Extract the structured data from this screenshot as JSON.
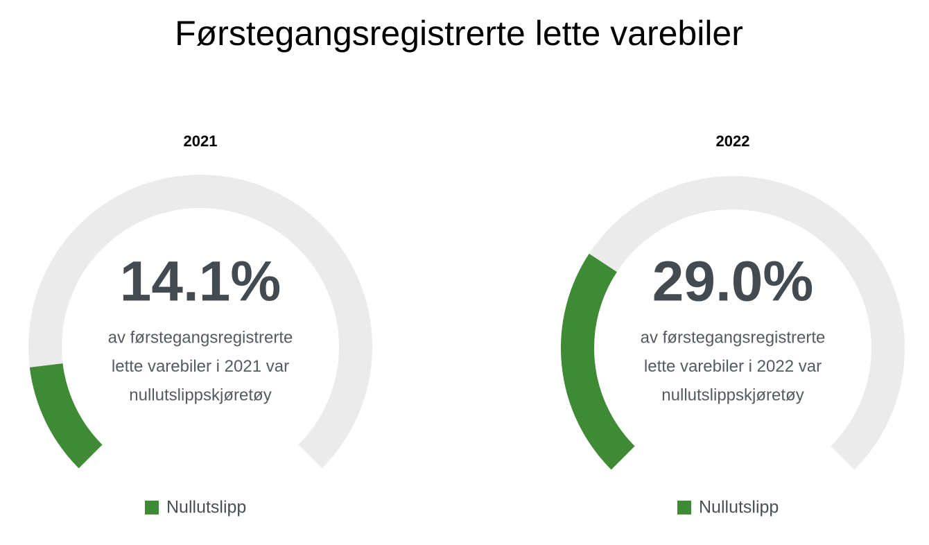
{
  "title": "Førstegangsregistrerte lette varebiler",
  "chart_data": [
    {
      "type": "gauge",
      "title": "2021",
      "ylim": [
        0,
        100
      ],
      "track_color": "#ebebeb",
      "series": [
        {
          "name": "Nullutslipp",
          "color": "#3f8a35",
          "values": [
            14.1
          ],
          "value_labels": [
            "14.1%"
          ]
        }
      ],
      "description": [
        "av førstegangsregistrerte",
        "lette varebiler i 2021 var",
        "nullutslippskjøretøy"
      ]
    },
    {
      "type": "gauge",
      "title": "2022",
      "ylim": [
        0,
        100
      ],
      "track_color": "#ebebeb",
      "series": [
        {
          "name": "Nullutslipp",
          "color": "#3f8a35",
          "values": [
            29.0
          ],
          "value_labels": [
            "29.0%"
          ]
        }
      ],
      "description": [
        "av førstegangsregistrerte",
        "lette varebiler i 2022 var",
        "nullutslippskjøretøy"
      ]
    }
  ]
}
